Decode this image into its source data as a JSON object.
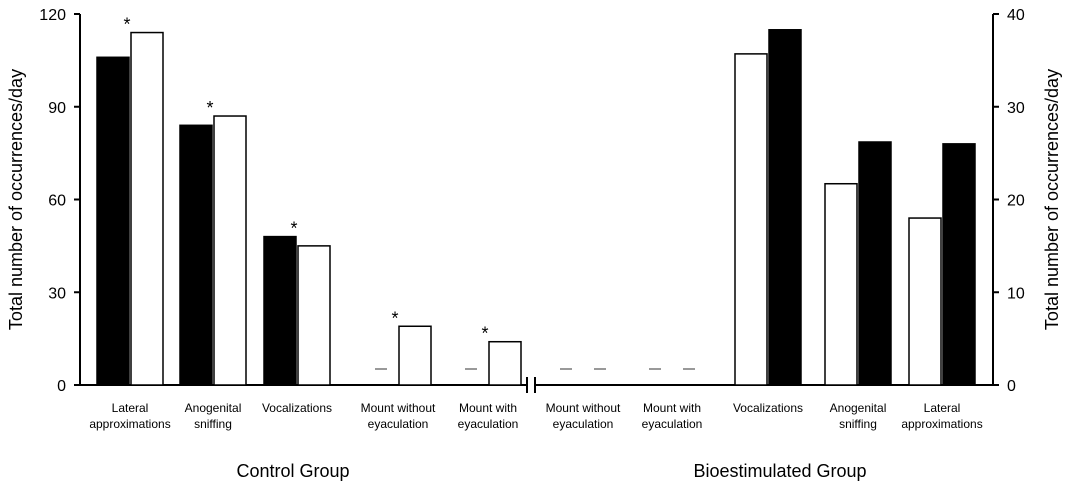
{
  "chart_data": {
    "type": "bar",
    "left_axis": {
      "label": "Total number of occurrences/day",
      "ylim": [
        0,
        120
      ],
      "ticks": [
        "0",
        "30",
        "60",
        "90",
        "120"
      ]
    },
    "right_axis": {
      "label": "Total number of occurrences/day",
      "ylim": [
        0,
        40
      ],
      "ticks": [
        "0",
        "10",
        "20",
        "30",
        "40"
      ]
    },
    "groups": [
      {
        "name": "Control Group",
        "axis": "left",
        "categories": [
          {
            "label": [
              "Lateral",
              "approximations"
            ],
            "black": 106,
            "white": 114,
            "star": "*"
          },
          {
            "label": [
              "Anogenital",
              "sniffing"
            ],
            "black": 84,
            "white": 87,
            "star": "*"
          },
          {
            "label": [
              "Vocalizations"
            ],
            "black": 48,
            "white": 45,
            "star": "*"
          },
          {
            "label": [
              "Mount without",
              "eyaculation"
            ],
            "black": 0,
            "white": 19,
            "star": "*"
          },
          {
            "label": [
              "Mount with",
              "eyaculation"
            ],
            "black": 0,
            "white": 14,
            "star": "*"
          }
        ]
      },
      {
        "name": "Bioestimulated Group",
        "axis": "right",
        "categories": [
          {
            "label": [
              "Mount without",
              "eyaculation"
            ],
            "white": 0,
            "black": 0,
            "star": ""
          },
          {
            "label": [
              "Mount with",
              "eyaculation"
            ],
            "white": 0,
            "black": 0,
            "star": ""
          },
          {
            "label": [
              "Vocalizations"
            ],
            "white": 35.7,
            "black": 38.3,
            "star": ""
          },
          {
            "label": [
              "Anogenital",
              "sniffing"
            ],
            "white": 21.7,
            "black": 26.2,
            "star": ""
          },
          {
            "label": [
              "Lateral",
              "approximations"
            ],
            "white": 18,
            "black": 26,
            "star": ""
          }
        ]
      }
    ],
    "colors": {
      "black": "#000000",
      "white": "#ffffff",
      "zero_marker": "#999999"
    }
  }
}
